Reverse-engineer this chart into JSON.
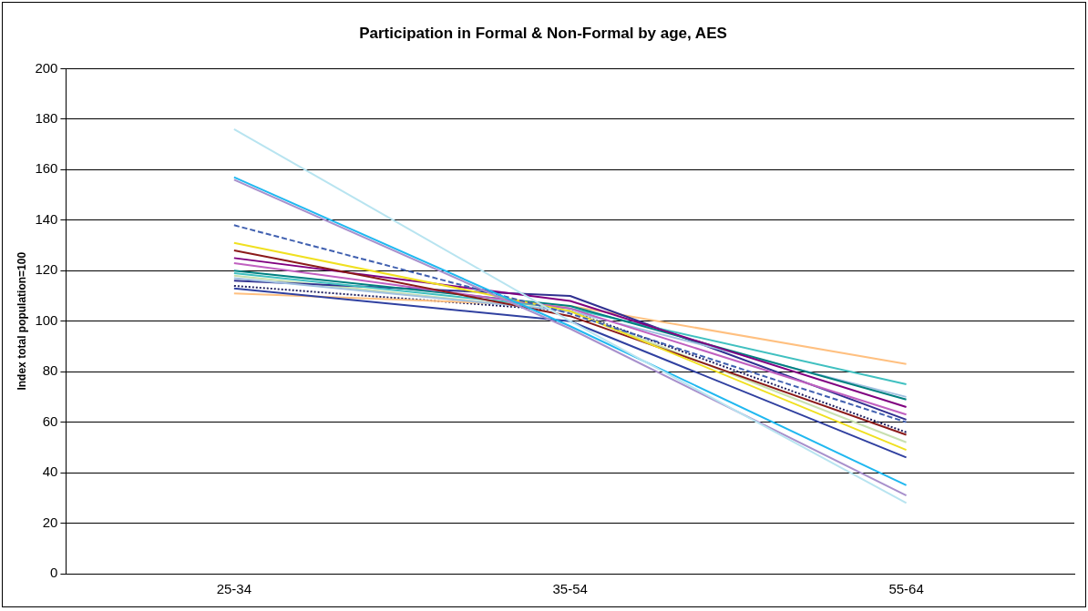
{
  "chart_data": {
    "type": "line",
    "title": "Participation in Formal & Non-Formal by age, AES",
    "ylabel": "Index total population=100",
    "categories": [
      "25-34",
      "35-54",
      "55-64"
    ],
    "ylim": [
      0,
      200
    ],
    "yticks": [
      0,
      20,
      40,
      60,
      80,
      100,
      120,
      140,
      160,
      180,
      200
    ],
    "grid": "y",
    "legend": false,
    "marker": "none",
    "series": [
      {
        "color": "#b8e4f0",
        "values": [
          176,
          100,
          28
        ]
      },
      {
        "color": "#20b8f0",
        "values": [
          157,
          98,
          35
        ]
      },
      {
        "color": "#a890cc",
        "values": [
          156,
          97,
          31
        ]
      },
      {
        "color": "#4060b0",
        "values": [
          138,
          103,
          60
        ],
        "line_style": "dashed"
      },
      {
        "color": "#f0e020",
        "values": [
          131,
          104,
          49
        ]
      },
      {
        "color": "#8b1a1a",
        "values": [
          128,
          102,
          55
        ]
      },
      {
        "color": "#800080",
        "values": [
          125,
          108,
          66
        ]
      },
      {
        "color": "#c060c0",
        "values": [
          123,
          105,
          63
        ]
      },
      {
        "color": "#008080",
        "values": [
          120,
          106,
          69
        ]
      },
      {
        "color": "#40c0c0",
        "values": [
          119,
          105,
          75
        ]
      },
      {
        "color": "#a0c0e0",
        "values": [
          117,
          104,
          70
        ]
      },
      {
        "color": "#303090",
        "values": [
          116,
          110,
          61
        ]
      },
      {
        "color": "#3040a0",
        "values": [
          113,
          100,
          46
        ]
      },
      {
        "color": "#ffc080",
        "values": [
          111,
          106,
          83
        ]
      },
      {
        "color": "#c8e0b0",
        "values": [
          118,
          104,
          52
        ]
      },
      {
        "color": "#202060",
        "values": [
          114,
          104,
          56
        ],
        "line_style": "dotted"
      }
    ]
  }
}
